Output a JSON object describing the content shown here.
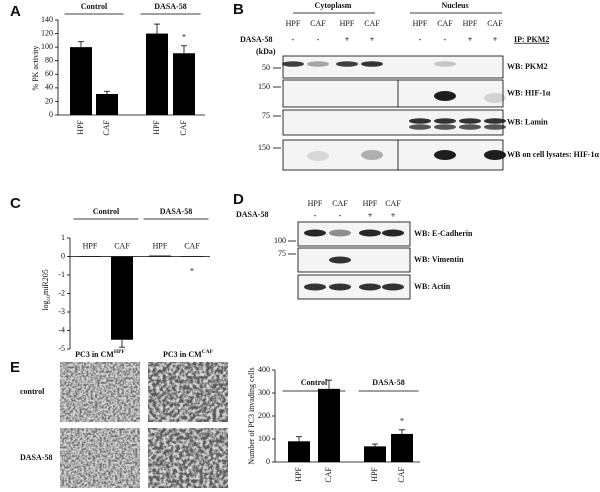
{
  "chart_data": [
    {
      "panel": "A",
      "type": "bar",
      "groups": [
        "Control",
        "DASA-58"
      ],
      "categories": [
        "HPF",
        "CAF",
        "HPF",
        "CAF"
      ],
      "values": [
        100,
        31,
        120,
        91
      ],
      "errors": [
        8,
        4,
        14,
        11
      ],
      "color": "#000000",
      "ylim": [
        0,
        140
      ],
      "yticks": [
        0,
        20,
        40,
        60,
        80,
        100,
        120,
        140
      ],
      "y_label": "% PK activity",
      "annotation": "*"
    },
    {
      "panel": "C",
      "type": "bar",
      "groups": [
        "Control",
        "DASA-58"
      ],
      "categories": [
        "HPF",
        "CAF",
        "HPF",
        "CAF"
      ],
      "values": [
        0,
        -4.5,
        0.05,
        0.02
      ],
      "errors": [
        0,
        0.4,
        0,
        0
      ],
      "color": "#000000",
      "ylim": [
        -5,
        1
      ],
      "yticks": [
        1,
        0,
        -1,
        -2,
        -3,
        -4,
        -5
      ],
      "y_label": [
        "log",
        "10",
        "miR205"
      ],
      "annotation": "*"
    },
    {
      "panel": "E",
      "type": "bar",
      "groups": [
        "Control",
        "DASA-58"
      ],
      "categories": [
        "HPF",
        "CAF",
        "HPF",
        "CAF"
      ],
      "values": [
        90,
        318,
        68,
        122
      ],
      "errors": [
        20,
        38,
        10,
        18
      ],
      "color": "#000000",
      "ylim": [
        0,
        400
      ],
      "yticks": [
        0,
        100,
        200,
        300,
        400
      ],
      "y_label": "Number of PC3 invading cells",
      "annotation": "*"
    }
  ],
  "blot_b": {
    "letter": "B",
    "fractions": [
      "Cytoplasm",
      "Nucleus"
    ],
    "columns": [
      "HPF",
      "CAF",
      "HPF",
      "CAF",
      "HPF",
      "CAF",
      "HPF",
      "CAF"
    ],
    "treatment": "DASA-58",
    "signs": [
      "-",
      "-",
      "+",
      "+",
      "-",
      "-",
      "+",
      "+"
    ],
    "ip": "IP: PKM2",
    "unit": "(kDa)",
    "rows": [
      {
        "marker": 50,
        "label": "WB: PKM2"
      },
      {
        "marker": 150,
        "label": "WB: HIF-1α"
      },
      {
        "marker": 75,
        "label": "WB: Lamin"
      },
      {
        "marker": 150,
        "label": "WB on cell lysates: HIF-1α"
      }
    ]
  },
  "blot_d": {
    "letter": "D",
    "columns": [
      "HPF",
      "CAF",
      "HPF",
      "CAF"
    ],
    "treatment": "DASA-58",
    "signs": [
      "-",
      "-",
      "+",
      "+"
    ],
    "rows": [
      {
        "marker": 100,
        "label": "WB: E-Cadherin"
      },
      {
        "marker": 75,
        "label": "WB: Vimentin"
      },
      {
        "label": "WB: Actin"
      }
    ]
  },
  "images_e": {
    "columns": [
      {
        "text": "PC3 in CM",
        "sup": "HPF"
      },
      {
        "text": "PC3 in CM",
        "sup": "CAF"
      }
    ],
    "rows": [
      "control",
      "DASA-58"
    ]
  }
}
